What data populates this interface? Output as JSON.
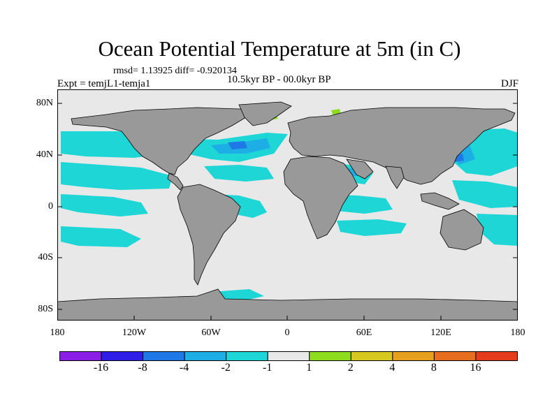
{
  "title": "Ocean Potential Temperature at 5m (in C)",
  "subtitle": "rmsd= 1.13925 diff= -0.920134",
  "center_string": "10.5kyr BP - 00.0kyr BP",
  "left_string": "Expt = temjL1-temja1",
  "right_string": "DJF",
  "lat_labels": [
    "80N",
    "40N",
    "0",
    "40S",
    "80S"
  ],
  "lon_labels": [
    "180",
    "120W",
    "60W",
    "0",
    "60E",
    "120E",
    "180"
  ],
  "colorbar": {
    "labels": [
      "-16",
      "-8",
      "-4",
      "-2",
      "-1",
      "1",
      "2",
      "4",
      "8",
      "16"
    ],
    "colors": [
      "#8a1ee6",
      "#2e1ee6",
      "#1e78e6",
      "#1eaee6",
      "#1ed6d6",
      "#e8e8e8",
      "#8edc1e",
      "#d6c81e",
      "#e6a01e",
      "#e66e1e",
      "#e63c1e"
    ]
  },
  "colors": {
    "land": "#999999",
    "neutral_ocean": "#e8e8e8",
    "anomaly_minus_1_to_2": "#1ed6d6",
    "anomaly_minus_2_to_4": "#1eaee6",
    "anomaly_minus_4_to_8": "#1e78e6",
    "anomaly_1_to_2": "#8edc1e"
  }
}
